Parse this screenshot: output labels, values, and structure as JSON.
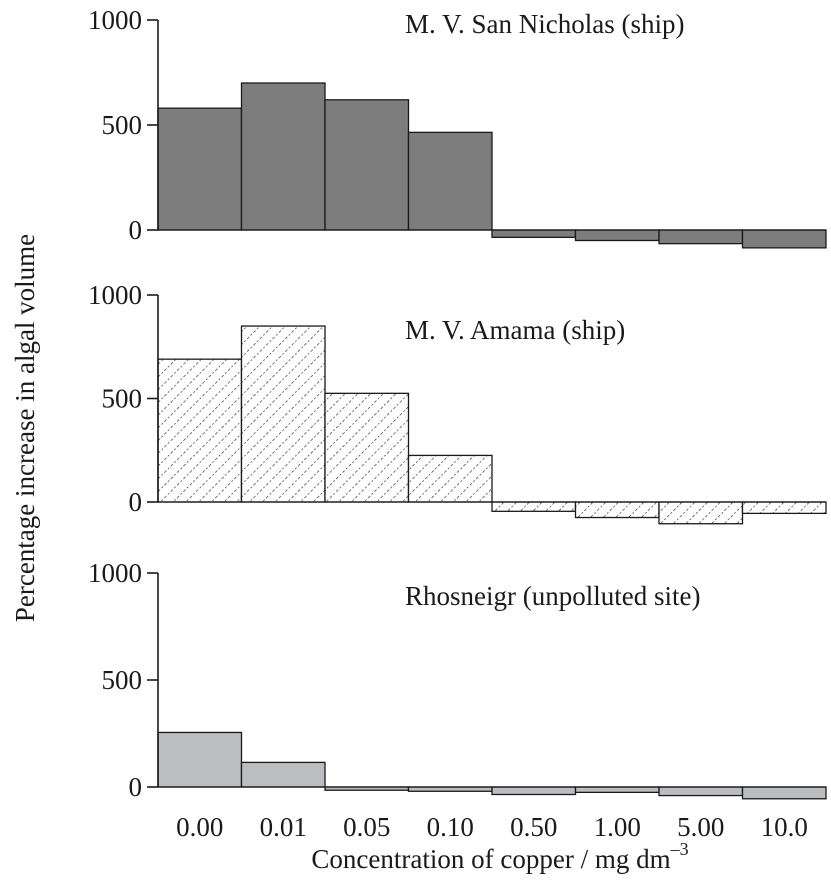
{
  "chart_data": {
    "type": "bar",
    "ylabel": "Percentage increase in algal volume",
    "xlabel": {
      "text": "Concentration of copper / mg dm",
      "superscript": "–3"
    },
    "categories": [
      "0.00",
      "0.01",
      "0.05",
      "0.10",
      "0.50",
      "1.00",
      "5.00",
      "10.0"
    ],
    "ylim": [
      -100,
      1000
    ],
    "yticks": [
      "0",
      "500",
      "1000"
    ],
    "grid": false,
    "panels": [
      {
        "title": "M. V. San Nicholas (ship)",
        "fill": "dark-grey",
        "color": "#7d7d7d",
        "values": [
          580,
          700,
          620,
          465,
          -35,
          -50,
          -65,
          -85
        ]
      },
      {
        "title": "M. V. Amama (ship)",
        "fill": "hatched",
        "color": "#ffffff",
        "values": [
          690,
          850,
          525,
          225,
          -45,
          -75,
          -105,
          -55
        ]
      },
      {
        "title": "Rhosneigr (unpolluted site)",
        "fill": "light-grey",
        "color": "#bcbdc0",
        "values": [
          255,
          115,
          -15,
          -20,
          -35,
          -25,
          -40,
          -55
        ]
      }
    ]
  }
}
